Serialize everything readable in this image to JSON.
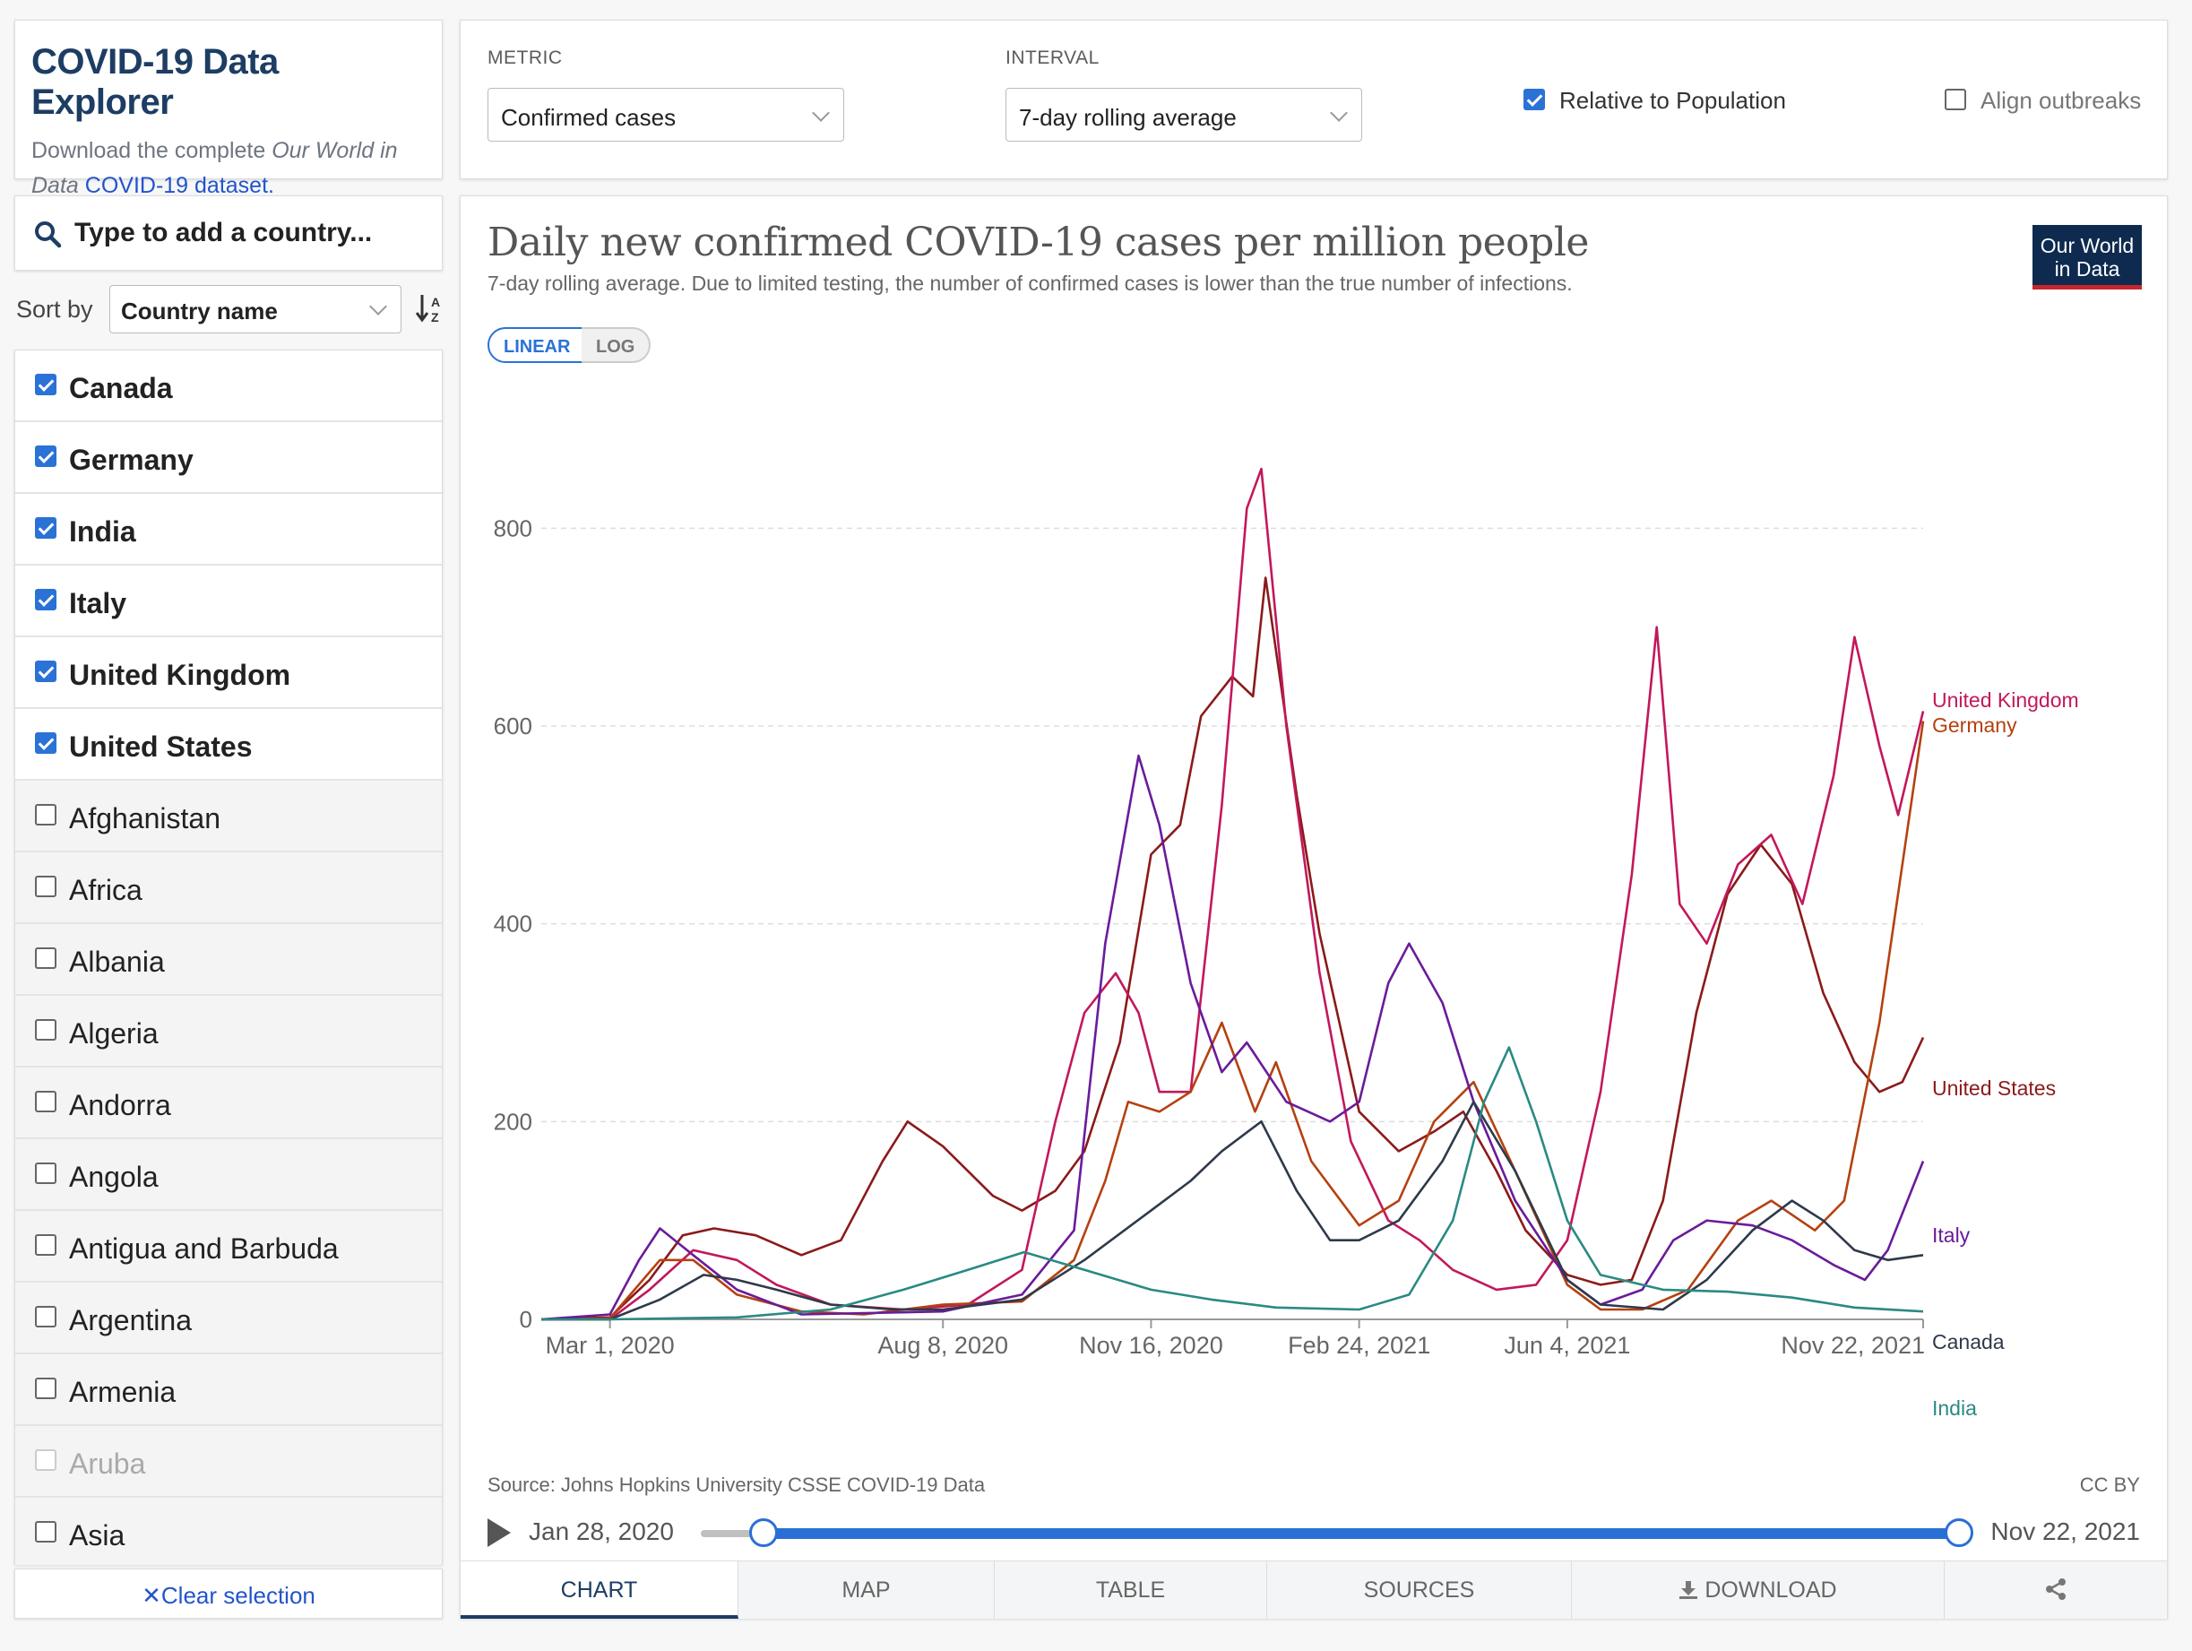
{
  "header": {
    "title": "COVID-19 Data Explorer",
    "desc_pre": "Download the complete ",
    "desc_em": "Our World in Data",
    "desc_link": "COVID-19 dataset."
  },
  "controls": {
    "metric_label": "METRIC",
    "metric_value": "Confirmed cases",
    "interval_label": "INTERVAL",
    "interval_value": "7-day rolling average",
    "relative_label": "Relative to Population",
    "relative_checked": true,
    "align_label": "Align outbreaks",
    "align_checked": false
  },
  "search": {
    "placeholder": "Type to add a country..."
  },
  "sort": {
    "label": "Sort by",
    "value": "Country name"
  },
  "countries": [
    {
      "name": "Canada",
      "checked": true
    },
    {
      "name": "Germany",
      "checked": true
    },
    {
      "name": "India",
      "checked": true
    },
    {
      "name": "Italy",
      "checked": true
    },
    {
      "name": "United Kingdom",
      "checked": true
    },
    {
      "name": "United States",
      "checked": true
    },
    {
      "name": "Afghanistan",
      "checked": false
    },
    {
      "name": "Africa",
      "checked": false
    },
    {
      "name": "Albania",
      "checked": false
    },
    {
      "name": "Algeria",
      "checked": false
    },
    {
      "name": "Andorra",
      "checked": false
    },
    {
      "name": "Angola",
      "checked": false
    },
    {
      "name": "Antigua and Barbuda",
      "checked": false
    },
    {
      "name": "Argentina",
      "checked": false
    },
    {
      "name": "Armenia",
      "checked": false
    },
    {
      "name": "Aruba",
      "checked": false,
      "disabled": true
    },
    {
      "name": "Asia",
      "checked": false
    }
  ],
  "clear_selection": "Clear selection",
  "chart": {
    "logo": "Our World in Data",
    "linear_label": "LINEAR",
    "log_label": "LOG",
    "source": "Source: Johns Hopkins University CSSE COVID-19 Data",
    "license": "CC BY"
  },
  "chart_data": {
    "type": "line",
    "title": "Daily new confirmed COVID-19 cases per million people",
    "subtitle": "7-day rolling average. Due to limited testing, the number of confirmed cases is lower than the true number of infections.",
    "ylim": [
      0,
      900
    ],
    "yticks": [
      0,
      200,
      400,
      600,
      800
    ],
    "x_range": [
      "2020-01-28",
      "2021-11-22"
    ],
    "xticks": [
      {
        "date": "2020-03-01",
        "label": "Mar 1, 2020"
      },
      {
        "date": "2020-08-08",
        "label": "Aug 8, 2020"
      },
      {
        "date": "2020-11-16",
        "label": "Nov 16, 2020"
      },
      {
        "date": "2021-02-24",
        "label": "Feb 24, 2021"
      },
      {
        "date": "2021-06-04",
        "label": "Jun 4, 2021"
      },
      {
        "date": "2021-11-22",
        "label": "Nov 22, 2021"
      }
    ],
    "grid": true,
    "legend": "right-end-labels",
    "series": [
      {
        "name": "United States",
        "color": "#8b1a1a",
        "points": [
          [
            "2020-01-28",
            0
          ],
          [
            "2020-03-01",
            2
          ],
          [
            "2020-03-20",
            40
          ],
          [
            "2020-04-05",
            85
          ],
          [
            "2020-04-20",
            92
          ],
          [
            "2020-05-10",
            85
          ],
          [
            "2020-06-01",
            65
          ],
          [
            "2020-06-20",
            80
          ],
          [
            "2020-07-10",
            160
          ],
          [
            "2020-07-22",
            200
          ],
          [
            "2020-08-08",
            175
          ],
          [
            "2020-09-01",
            125
          ],
          [
            "2020-09-15",
            110
          ],
          [
            "2020-10-01",
            130
          ],
          [
            "2020-10-15",
            170
          ],
          [
            "2020-11-01",
            280
          ],
          [
            "2020-11-16",
            470
          ],
          [
            "2020-11-30",
            500
          ],
          [
            "2020-12-10",
            610
          ],
          [
            "2020-12-25",
            650
          ],
          [
            "2021-01-04",
            630
          ],
          [
            "2021-01-10",
            750
          ],
          [
            "2021-01-25",
            530
          ],
          [
            "2021-02-05",
            390
          ],
          [
            "2021-02-24",
            210
          ],
          [
            "2021-03-15",
            170
          ],
          [
            "2021-04-01",
            190
          ],
          [
            "2021-04-15",
            210
          ],
          [
            "2021-05-01",
            150
          ],
          [
            "2021-05-15",
            90
          ],
          [
            "2021-06-04",
            45
          ],
          [
            "2021-06-20",
            35
          ],
          [
            "2021-07-05",
            40
          ],
          [
            "2021-07-20",
            120
          ],
          [
            "2021-08-05",
            310
          ],
          [
            "2021-08-20",
            430
          ],
          [
            "2021-09-05",
            480
          ],
          [
            "2021-09-20",
            440
          ],
          [
            "2021-10-05",
            330
          ],
          [
            "2021-10-20",
            260
          ],
          [
            "2021-11-01",
            230
          ],
          [
            "2021-11-12",
            240
          ],
          [
            "2021-11-22",
            285
          ]
        ]
      },
      {
        "name": "United Kingdom",
        "color": "#c2185b",
        "points": [
          [
            "2020-01-28",
            0
          ],
          [
            "2020-03-01",
            0
          ],
          [
            "2020-03-20",
            30
          ],
          [
            "2020-04-10",
            70
          ],
          [
            "2020-05-01",
            60
          ],
          [
            "2020-05-20",
            35
          ],
          [
            "2020-06-15",
            15
          ],
          [
            "2020-07-20",
            10
          ],
          [
            "2020-08-20",
            15
          ],
          [
            "2020-09-15",
            50
          ],
          [
            "2020-10-01",
            200
          ],
          [
            "2020-10-15",
            310
          ],
          [
            "2020-10-30",
            350
          ],
          [
            "2020-11-10",
            310
          ],
          [
            "2020-11-20",
            230
          ],
          [
            "2020-12-05",
            230
          ],
          [
            "2020-12-20",
            520
          ],
          [
            "2021-01-01",
            820
          ],
          [
            "2021-01-08",
            860
          ],
          [
            "2021-01-20",
            600
          ],
          [
            "2021-02-05",
            350
          ],
          [
            "2021-02-20",
            180
          ],
          [
            "2021-03-10",
            100
          ],
          [
            "2021-03-25",
            80
          ],
          [
            "2021-04-10",
            50
          ],
          [
            "2021-05-01",
            30
          ],
          [
            "2021-05-20",
            35
          ],
          [
            "2021-06-04",
            80
          ],
          [
            "2021-06-20",
            230
          ],
          [
            "2021-07-05",
            450
          ],
          [
            "2021-07-17",
            700
          ],
          [
            "2021-07-28",
            420
          ],
          [
            "2021-08-10",
            380
          ],
          [
            "2021-08-25",
            460
          ],
          [
            "2021-09-10",
            490
          ],
          [
            "2021-09-25",
            420
          ],
          [
            "2021-10-10",
            550
          ],
          [
            "2021-10-20",
            690
          ],
          [
            "2021-11-01",
            580
          ],
          [
            "2021-11-10",
            510
          ],
          [
            "2021-11-22",
            615
          ]
        ]
      },
      {
        "name": "Germany",
        "color": "#b5410f",
        "points": [
          [
            "2020-01-28",
            0
          ],
          [
            "2020-03-01",
            1
          ],
          [
            "2020-03-25",
            60
          ],
          [
            "2020-04-10",
            60
          ],
          [
            "2020-05-01",
            25
          ],
          [
            "2020-06-01",
            8
          ],
          [
            "2020-07-01",
            5
          ],
          [
            "2020-08-08",
            15
          ],
          [
            "2020-09-15",
            18
          ],
          [
            "2020-10-10",
            60
          ],
          [
            "2020-10-25",
            140
          ],
          [
            "2020-11-05",
            220
          ],
          [
            "2020-11-20",
            210
          ],
          [
            "2020-12-05",
            230
          ],
          [
            "2020-12-20",
            300
          ],
          [
            "2021-01-05",
            210
          ],
          [
            "2021-01-15",
            260
          ],
          [
            "2021-02-01",
            160
          ],
          [
            "2021-02-24",
            95
          ],
          [
            "2021-03-15",
            120
          ],
          [
            "2021-04-01",
            200
          ],
          [
            "2021-04-20",
            240
          ],
          [
            "2021-05-10",
            150
          ],
          [
            "2021-06-04",
            35
          ],
          [
            "2021-06-20",
            10
          ],
          [
            "2021-07-10",
            10
          ],
          [
            "2021-08-01",
            30
          ],
          [
            "2021-08-25",
            100
          ],
          [
            "2021-09-10",
            120
          ],
          [
            "2021-10-01",
            90
          ],
          [
            "2021-10-15",
            120
          ],
          [
            "2021-11-01",
            300
          ],
          [
            "2021-11-22",
            605
          ]
        ]
      },
      {
        "name": "Italy",
        "color": "#6a1b9a",
        "points": [
          [
            "2020-01-28",
            0
          ],
          [
            "2020-03-01",
            5
          ],
          [
            "2020-03-15",
            60
          ],
          [
            "2020-03-25",
            92
          ],
          [
            "2020-04-10",
            65
          ],
          [
            "2020-05-01",
            30
          ],
          [
            "2020-06-01",
            5
          ],
          [
            "2020-08-08",
            8
          ],
          [
            "2020-09-15",
            25
          ],
          [
            "2020-10-10",
            90
          ],
          [
            "2020-10-25",
            380
          ],
          [
            "2020-11-10",
            570
          ],
          [
            "2020-11-20",
            500
          ],
          [
            "2020-12-05",
            340
          ],
          [
            "2020-12-20",
            250
          ],
          [
            "2021-01-01",
            280
          ],
          [
            "2021-01-20",
            220
          ],
          [
            "2021-02-10",
            200
          ],
          [
            "2021-02-24",
            220
          ],
          [
            "2021-03-10",
            340
          ],
          [
            "2021-03-20",
            380
          ],
          [
            "2021-04-05",
            320
          ],
          [
            "2021-04-20",
            220
          ],
          [
            "2021-05-10",
            120
          ],
          [
            "2021-06-04",
            40
          ],
          [
            "2021-06-20",
            15
          ],
          [
            "2021-07-10",
            30
          ],
          [
            "2021-07-25",
            80
          ],
          [
            "2021-08-10",
            100
          ],
          [
            "2021-09-01",
            95
          ],
          [
            "2021-09-20",
            80
          ],
          [
            "2021-10-10",
            55
          ],
          [
            "2021-10-25",
            40
          ],
          [
            "2021-11-05",
            70
          ],
          [
            "2021-11-22",
            160
          ]
        ]
      },
      {
        "name": "Canada",
        "color": "#2e3a4a",
        "points": [
          [
            "2020-01-28",
            0
          ],
          [
            "2020-03-01",
            0
          ],
          [
            "2020-03-25",
            20
          ],
          [
            "2020-04-15",
            45
          ],
          [
            "2020-05-01",
            40
          ],
          [
            "2020-05-20",
            30
          ],
          [
            "2020-06-15",
            15
          ],
          [
            "2020-07-15",
            10
          ],
          [
            "2020-08-08",
            10
          ],
          [
            "2020-09-15",
            20
          ],
          [
            "2020-10-15",
            60
          ],
          [
            "2020-11-16",
            110
          ],
          [
            "2020-12-05",
            140
          ],
          [
            "2020-12-20",
            170
          ],
          [
            "2021-01-08",
            200
          ],
          [
            "2021-01-25",
            130
          ],
          [
            "2021-02-10",
            80
          ],
          [
            "2021-02-24",
            80
          ],
          [
            "2021-03-15",
            100
          ],
          [
            "2021-04-05",
            160
          ],
          [
            "2021-04-20",
            220
          ],
          [
            "2021-05-10",
            150
          ],
          [
            "2021-06-04",
            40
          ],
          [
            "2021-06-20",
            15
          ],
          [
            "2021-07-20",
            10
          ],
          [
            "2021-08-10",
            40
          ],
          [
            "2021-09-01",
            90
          ],
          [
            "2021-09-20",
            120
          ],
          [
            "2021-10-05",
            100
          ],
          [
            "2021-10-20",
            70
          ],
          [
            "2021-11-05",
            60
          ],
          [
            "2021-11-22",
            65
          ]
        ]
      },
      {
        "name": "India",
        "color": "#2a8a82",
        "points": [
          [
            "2020-01-28",
            0
          ],
          [
            "2020-03-01",
            0
          ],
          [
            "2020-05-01",
            2
          ],
          [
            "2020-06-15",
            10
          ],
          [
            "2020-07-20",
            30
          ],
          [
            "2020-08-20",
            50
          ],
          [
            "2020-09-16",
            68
          ],
          [
            "2020-10-15",
            50
          ],
          [
            "2020-11-16",
            30
          ],
          [
            "2020-12-15",
            20
          ],
          [
            "2021-01-15",
            12
          ],
          [
            "2021-02-24",
            10
          ],
          [
            "2021-03-20",
            25
          ],
          [
            "2021-04-10",
            100
          ],
          [
            "2021-04-25",
            220
          ],
          [
            "2021-05-07",
            275
          ],
          [
            "2021-05-20",
            200
          ],
          [
            "2021-06-04",
            100
          ],
          [
            "2021-06-20",
            45
          ],
          [
            "2021-07-20",
            30
          ],
          [
            "2021-08-20",
            28
          ],
          [
            "2021-09-20",
            22
          ],
          [
            "2021-10-20",
            12
          ],
          [
            "2021-11-22",
            8
          ]
        ]
      }
    ]
  },
  "timeline": {
    "start": "Jan 28, 2020",
    "end": "Nov 22, 2021"
  },
  "tabs": [
    "CHART",
    "MAP",
    "TABLE",
    "SOURCES",
    "DOWNLOAD",
    ""
  ]
}
